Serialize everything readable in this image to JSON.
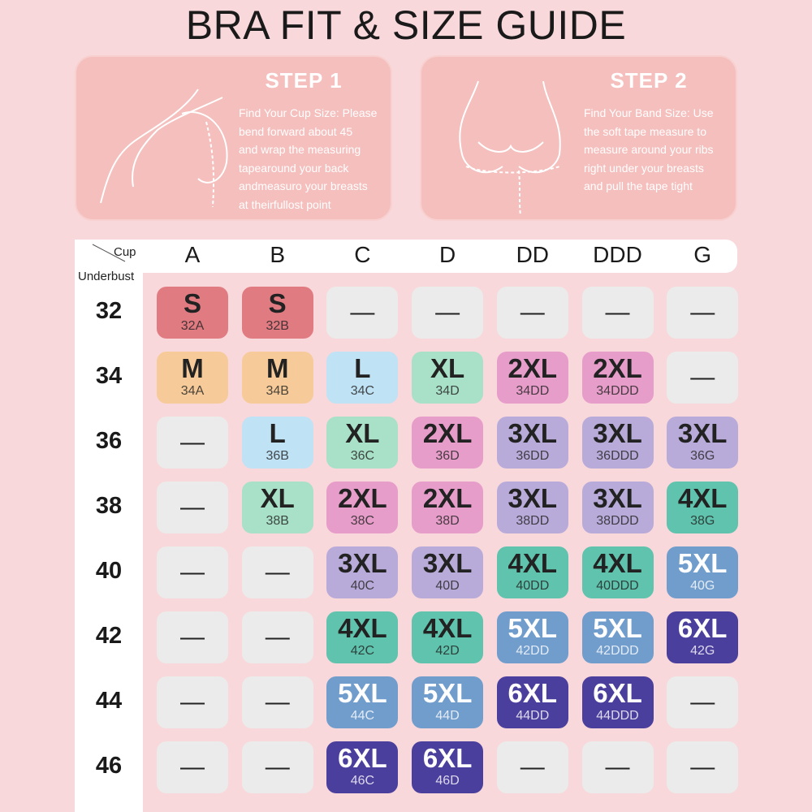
{
  "title": "BRA FIT & SIZE GUIDE",
  "steps": [
    {
      "title": "STEP 1",
      "lines": [
        "Find Your Cup Size: Please",
        "bend forward about 45",
        "and wrap the measuring",
        "tapearound your back",
        "andmeasuro your breasts",
        "at theirfullost point"
      ]
    },
    {
      "title": "STEP 2",
      "lines": [
        "Find Your Band Size: Use",
        "the soft tape measure to",
        "measure around your ribs",
        "right under your breasts",
        "and pull the tape tight"
      ]
    }
  ],
  "table": {
    "corner": {
      "top": "Cup",
      "bottom": "Underbust"
    },
    "columns": [
      "A",
      "B",
      "C",
      "D",
      "DD",
      "DDD",
      "G"
    ],
    "empty_color": "#ebebeb",
    "size_styles": {
      "S": {
        "fill": "#e07b82",
        "text": "#222222"
      },
      "M": {
        "fill": "#f6cb99",
        "text": "#222222"
      },
      "L": {
        "fill": "#bfe2f4",
        "text": "#222222"
      },
      "XL": {
        "fill": "#a9e0c8",
        "text": "#222222"
      },
      "2XL": {
        "fill": "#e79dc9",
        "text": "#222222"
      },
      "3XL": {
        "fill": "#b9abd9",
        "text": "#222222"
      },
      "4XL": {
        "fill": "#5fc3ad",
        "text": "#222222"
      },
      "5XL": {
        "fill": "#719dcd",
        "text": "#ffffff"
      },
      "6XL": {
        "fill": "#4b3f9d",
        "text": "#ffffff"
      }
    },
    "rows": [
      {
        "label": "32",
        "cells": [
          {
            "size": "S",
            "code": "32A"
          },
          {
            "size": "S",
            "code": "32B"
          },
          "—",
          "—",
          "—",
          "—",
          "—"
        ]
      },
      {
        "label": "34",
        "cells": [
          {
            "size": "M",
            "code": "34A"
          },
          {
            "size": "M",
            "code": "34B"
          },
          {
            "size": "L",
            "code": "34C"
          },
          {
            "size": "XL",
            "code": "34D"
          },
          {
            "size": "2XL",
            "code": "34DD"
          },
          {
            "size": "2XL",
            "code": "34DDD"
          },
          "—"
        ]
      },
      {
        "label": "36",
        "cells": [
          "—",
          {
            "size": "L",
            "code": "36B"
          },
          {
            "size": "XL",
            "code": "36C"
          },
          {
            "size": "2XL",
            "code": "36D"
          },
          {
            "size": "3XL",
            "code": "36DD"
          },
          {
            "size": "3XL",
            "code": "36DDD"
          },
          {
            "size": "3XL",
            "code": "36G"
          }
        ]
      },
      {
        "label": "38",
        "cells": [
          "—",
          {
            "size": "XL",
            "code": "38B"
          },
          {
            "size": "2XL",
            "code": "38C"
          },
          {
            "size": "2XL",
            "code": "38D"
          },
          {
            "size": "3XL",
            "code": "38DD"
          },
          {
            "size": "3XL",
            "code": "38DDD"
          },
          {
            "size": "4XL",
            "code": "38G"
          }
        ]
      },
      {
        "label": "40",
        "cells": [
          "—",
          "—",
          {
            "size": "3XL",
            "code": "40C"
          },
          {
            "size": "3XL",
            "code": "40D"
          },
          {
            "size": "4XL",
            "code": "40DD"
          },
          {
            "size": "4XL",
            "code": "40DDD"
          },
          {
            "size": "5XL",
            "code": "40G"
          }
        ]
      },
      {
        "label": "42",
        "cells": [
          "—",
          "—",
          {
            "size": "4XL",
            "code": "42C"
          },
          {
            "size": "4XL",
            "code": "42D"
          },
          {
            "size": "5XL",
            "code": "42DD"
          },
          {
            "size": "5XL",
            "code": "42DDD"
          },
          {
            "size": "6XL",
            "code": "42G"
          }
        ]
      },
      {
        "label": "44",
        "cells": [
          "—",
          "—",
          {
            "size": "5XL",
            "code": "44C"
          },
          {
            "size": "5XL",
            "code": "44D"
          },
          {
            "size": "6XL",
            "code": "44DD"
          },
          {
            "size": "6XL",
            "code": "44DDD"
          },
          "—"
        ]
      },
      {
        "label": "46",
        "cells": [
          "—",
          "—",
          {
            "size": "6XL",
            "code": "46C"
          },
          {
            "size": "6XL",
            "code": "46D"
          },
          "—",
          "—",
          "—"
        ]
      }
    ]
  }
}
